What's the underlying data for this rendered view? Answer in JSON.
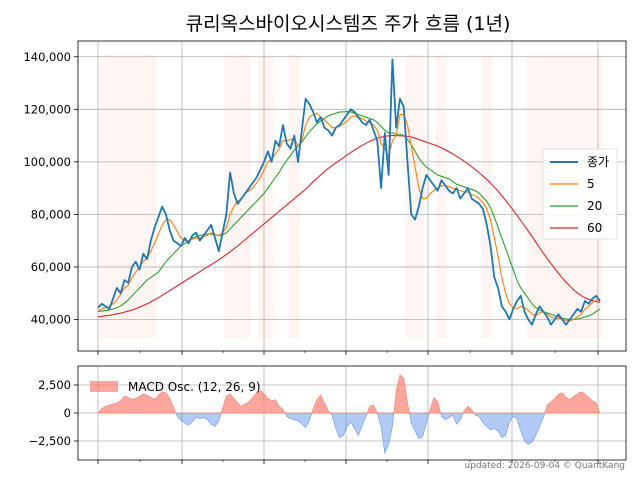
{
  "chart_data": [
    {
      "type": "line",
      "title": "큐리옥스바이오시스템즈 주가 흐름 (1년)",
      "ylim": [
        28000,
        146000
      ],
      "y_ticks": [
        40000,
        60000,
        80000,
        100000,
        120000,
        140000
      ],
      "y_tick_labels": [
        "40,000",
        "60,000",
        "80,000",
        "100,000",
        "120,000",
        "140,000"
      ],
      "grid": true,
      "legend_position": "right",
      "series": [
        {
          "name": "종가",
          "color": "#1f77b4",
          "values": [
            44500,
            46000,
            45000,
            44000,
            48000,
            52000,
            50000,
            55000,
            54000,
            60000,
            62000,
            59000,
            65000,
            63000,
            70000,
            75000,
            79000,
            83000,
            80000,
            74000,
            70000,
            69000,
            68000,
            71000,
            69000,
            72000,
            73000,
            70000,
            72000,
            74000,
            76000,
            71000,
            66000,
            73000,
            80000,
            96000,
            88000,
            84000,
            86000,
            88000,
            90000,
            92000,
            94000,
            97000,
            100000,
            104000,
            100000,
            108000,
            106000,
            114000,
            107000,
            105000,
            110000,
            100000,
            112000,
            124000,
            122000,
            119000,
            115000,
            117000,
            113000,
            112000,
            110000,
            113000,
            114000,
            116000,
            118000,
            120000,
            119000,
            117000,
            115000,
            114000,
            116000,
            112000,
            108000,
            90000,
            111000,
            95000,
            139000,
            113000,
            124000,
            121000,
            100000,
            80000,
            78000,
            83000,
            90000,
            95000,
            93000,
            91000,
            89000,
            93000,
            91000,
            89000,
            88000,
            90000,
            86000,
            88000,
            90000,
            86000,
            85000,
            84000,
            82000,
            76000,
            68000,
            56000,
            52000,
            45000,
            43000,
            40000,
            44000,
            47000,
            49000,
            43000,
            40000,
            38000,
            42000,
            45000,
            43000,
            41000,
            38000,
            40000,
            42000,
            40000,
            38000,
            40000,
            42000,
            44000,
            43000,
            47000,
            46000,
            48000,
            49000,
            47000
          ]
        },
        {
          "name": "5",
          "color": "#ff7f0e",
          "values": [
            43500,
            44000,
            44500,
            45000,
            46000,
            47500,
            49500,
            52000,
            53000,
            56000,
            58000,
            60000,
            62000,
            63500,
            66000,
            69000,
            72500,
            76000,
            78000,
            78000,
            76000,
            73500,
            71000,
            70000,
            70000,
            70500,
            71000,
            71000,
            71500,
            72000,
            73000,
            72500,
            72000,
            73000,
            75000,
            80000,
            83000,
            85000,
            86000,
            88000,
            89000,
            90000,
            92000,
            94000,
            97000,
            100000,
            101000,
            103000,
            105000,
            108000,
            108000,
            108500,
            109000,
            106000,
            108000,
            114000,
            117000,
            118000,
            118500,
            117000,
            116000,
            114500,
            113000,
            113000,
            113500,
            114500,
            115500,
            117000,
            117500,
            117000,
            116500,
            115500,
            115000,
            114000,
            112000,
            107000,
            105000,
            102000,
            108000,
            110000,
            118000,
            118000,
            114000,
            106000,
            98000,
            90000,
            86000,
            86000,
            88000,
            89000,
            90000,
            91000,
            91000,
            90500,
            90000,
            89500,
            89000,
            88500,
            88500,
            87500,
            87000,
            86000,
            84500,
            82000,
            78000,
            71000,
            64000,
            56000,
            50000,
            46000,
            44500,
            44000,
            45000,
            44500,
            43500,
            42000,
            41500,
            42500,
            43000,
            42000,
            41000,
            40500,
            40500,
            40000,
            39500,
            39500,
            40000,
            41000,
            42000,
            44000,
            45000,
            46500,
            47500,
            47500
          ]
        },
        {
          "name": "20",
          "color": "#2ca02c",
          "values": [
            43000,
            43200,
            43400,
            43600,
            44000,
            44500,
            45200,
            46200,
            47500,
            49000,
            50500,
            52000,
            53500,
            55000,
            56000,
            57000,
            58000,
            60000,
            62000,
            63500,
            65000,
            66500,
            68000,
            69000,
            70000,
            71000,
            71500,
            72000,
            72300,
            72500,
            72500,
            72300,
            72000,
            72200,
            73000,
            74500,
            76000,
            77500,
            79000,
            80500,
            82000,
            83500,
            85000,
            86500,
            88000,
            90000,
            92000,
            94000,
            96000,
            98500,
            100500,
            102500,
            104500,
            106000,
            107500,
            109500,
            111500,
            113000,
            114500,
            115500,
            116500,
            117500,
            118000,
            118500,
            119000,
            119000,
            119200,
            119000,
            118500,
            118000,
            117500,
            117000,
            116500,
            116000,
            115000,
            113500,
            112000,
            111000,
            111000,
            110500,
            110500,
            110000,
            108500,
            106500,
            104000,
            101500,
            99500,
            98000,
            97000,
            96000,
            95000,
            94500,
            94000,
            93500,
            92500,
            91500,
            91000,
            90500,
            90000,
            89500,
            89000,
            88000,
            86500,
            85000,
            82500,
            79000,
            75000,
            71000,
            67000,
            63000,
            59000,
            55000,
            52000,
            50000,
            48000,
            46000,
            44500,
            43500,
            43000,
            42500,
            42000,
            41500,
            41000,
            40500,
            40200,
            40000,
            40000,
            40200,
            40500,
            41000,
            41500,
            42000,
            43000,
            44000
          ]
        },
        {
          "name": "60",
          "color": "#d62728",
          "values": [
            41000,
            41200,
            41400,
            41600,
            41800,
            42100,
            42400,
            42800,
            43200,
            43600,
            44100,
            44700,
            45300,
            46000,
            46700,
            47500,
            48300,
            49200,
            50100,
            51000,
            51900,
            52800,
            53700,
            54600,
            55500,
            56400,
            57300,
            58200,
            59100,
            60000,
            60900,
            61800,
            62700,
            63700,
            64700,
            65800,
            66900,
            68000,
            69200,
            70400,
            71600,
            72800,
            74000,
            75200,
            76400,
            77600,
            78800,
            80000,
            81200,
            82400,
            83600,
            84800,
            86000,
            87200,
            88400,
            89600,
            91000,
            92400,
            93700,
            95000,
            96300,
            97500,
            98600,
            99600,
            100600,
            101600,
            102600,
            103600,
            104500,
            105400,
            106300,
            107100,
            107800,
            108400,
            109000,
            109400,
            109700,
            109900,
            110000,
            110000,
            109900,
            109800,
            109700,
            109500,
            109000,
            108500,
            108000,
            107500,
            107000,
            106500,
            106000,
            105300,
            104600,
            103800,
            103000,
            102100,
            101200,
            100200,
            99200,
            98100,
            97000,
            95800,
            94600,
            93300,
            91900,
            90400,
            88800,
            87100,
            85300,
            83500,
            81600,
            79700,
            77700,
            75700,
            73600,
            71500,
            69400,
            67300,
            65200,
            63200,
            61300,
            59400,
            57600,
            55800,
            54200,
            52700,
            51300,
            50100,
            49100,
            48300,
            47700,
            47200,
            46800,
            46500
          ]
        }
      ],
      "highlight_ranges": [
        [
          1,
          15
        ],
        [
          34,
          40
        ],
        [
          43,
          46
        ],
        [
          51,
          53
        ],
        [
          82,
          86
        ],
        [
          90,
          92
        ],
        [
          102,
          104
        ],
        [
          114,
          133
        ]
      ]
    },
    {
      "type": "area",
      "ylim": [
        -4200,
        4200
      ],
      "y_ticks": [
        2500,
        0,
        -2500
      ],
      "y_tick_labels": [
        "2,500",
        "0",
        "−2,500"
      ],
      "grid": true,
      "legend_position": "top-left",
      "series": [
        {
          "name": "MACD Osc. (12, 26, 9)",
          "positive_color": "#fa8072",
          "negative_color": "#6495ed",
          "values": [
            0,
            400,
            600,
            700,
            800,
            900,
            1100,
            1500,
            1400,
            1200,
            1300,
            1500,
            1700,
            1600,
            1400,
            1200,
            1600,
            1900,
            1800,
            1300,
            500,
            -300,
            -700,
            -900,
            -1100,
            -800,
            -400,
            -500,
            -400,
            -600,
            -1000,
            -1200,
            -700,
            400,
            1500,
            1700,
            1300,
            900,
            600,
            800,
            1000,
            1400,
            1800,
            2000,
            1700,
            1300,
            1100,
            1200,
            600,
            300,
            -300,
            -500,
            -600,
            -700,
            -1000,
            -1300,
            -700,
            400,
            1200,
            1600,
            900,
            200,
            -200,
            -1400,
            -2200,
            -2000,
            -1200,
            -800,
            -1400,
            -2000,
            -1100,
            -300,
            600,
            700,
            0,
            -1200,
            -3600,
            -2800,
            -1200,
            2000,
            3400,
            3100,
            900,
            -900,
            -1600,
            -2300,
            -2100,
            -900,
            300,
            1400,
            1000,
            -300,
            -600,
            -400,
            -200,
            -1000,
            -600,
            200,
            600,
            300,
            -200,
            -300,
            -900,
            -1200,
            -1500,
            -1400,
            -1600,
            -2200,
            -2000,
            -800,
            -300,
            -500,
            -1600,
            -2500,
            -2800,
            -2600,
            -2000,
            -1200,
            -400,
            700,
            1000,
            1300,
            1700,
            1800,
            1400,
            1200,
            1500,
            1700,
            1900,
            1700,
            1400,
            1100,
            900,
            0
          ]
        }
      ]
    }
  ],
  "footer": "updated: 2026-09-04 © QuantKang"
}
